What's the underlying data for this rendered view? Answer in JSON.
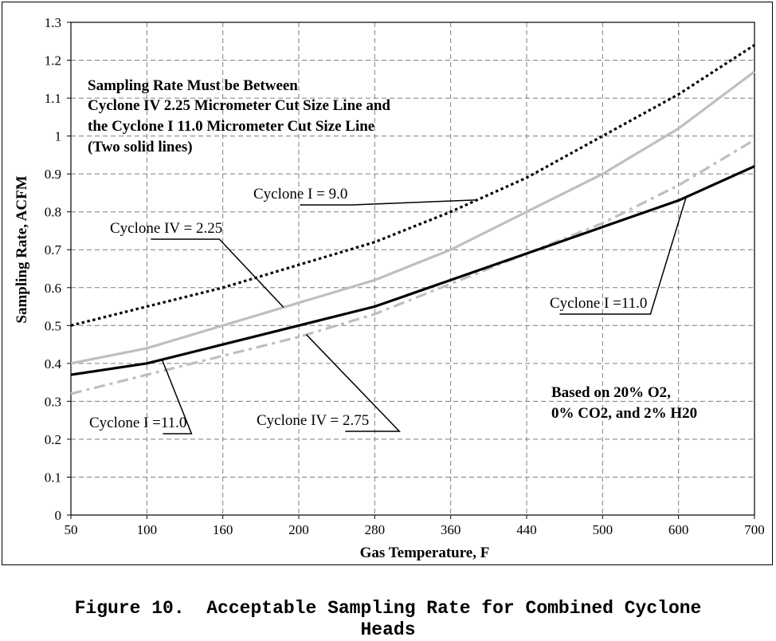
{
  "chart_data": {
    "type": "line",
    "categories": [
      "50",
      "100",
      "160",
      "200",
      "280",
      "360",
      "440",
      "500",
      "600",
      "700"
    ],
    "ylabel": "Sampling Rate, ACFM",
    "xlabel": "Gas Temperature, F",
    "ylim": [
      0,
      1.3
    ],
    "yticks": [
      "0",
      "0.1",
      "0.2",
      "0.3",
      "0.4",
      "0.5",
      "0.6",
      "0.7",
      "0.8",
      "0.9",
      "1",
      "1.1",
      "1.2",
      "1.3"
    ],
    "grid": "dashed",
    "series": [
      {
        "key": "cyc1_9",
        "label_ref": "Cyclone I = 9.0",
        "style": "dotted",
        "color": "#000000",
        "values": [
          0.5,
          0.55,
          0.6,
          0.66,
          0.72,
          0.8,
          0.89,
          1.0,
          1.11,
          1.24
        ]
      },
      {
        "key": "cyc4_225",
        "label_ref": "Cyclone IV = 2.25",
        "style": "solid",
        "color": "#bfbfbf",
        "values": [
          0.4,
          0.44,
          0.5,
          0.56,
          0.62,
          0.7,
          0.8,
          0.9,
          1.02,
          1.17
        ]
      },
      {
        "key": "cyc1_11",
        "label_ref": "Cyclone I =11.0",
        "style": "solid",
        "color": "#000000",
        "values": [
          0.37,
          0.4,
          0.45,
          0.5,
          0.55,
          0.62,
          0.69,
          0.76,
          0.83,
          0.92
        ]
      },
      {
        "key": "cyc4_275",
        "label_ref": "Cyclone IV = 2.75",
        "style": "dashdot",
        "color": "#bfbfbf",
        "values": [
          0.32,
          0.37,
          0.42,
          0.47,
          0.53,
          0.61,
          0.69,
          0.77,
          0.87,
          0.99
        ]
      }
    ],
    "annotations": {
      "note_lines": [
        "Sampling Rate Must be Between",
        "Cyclone IV 2.25 Micrometer Cut Size Line and",
        "the Cyclone I 11.0 Micrometer Cut Size Line",
        "(Two solid lines)"
      ],
      "basis_lines": [
        "Based on 20% O2,",
        "0% CO2, and 2% H20"
      ],
      "callouts": [
        {
          "text": "Cyclone I = 9.0",
          "series": "cyc1_9",
          "target_x_index": 5.35
        },
        {
          "text": "Cyclone IV = 2.25",
          "series": "cyc4_225",
          "target_x_index": 2.8
        },
        {
          "text": "Cyclone I =11.0",
          "series": "cyc1_11",
          "target_x_index": 8.1
        },
        {
          "text": "Cyclone I =11.0",
          "series": "cyc1_11",
          "target_x_index": 1.2
        },
        {
          "text": "Cyclone IV = 2.75",
          "series": "cyc4_275",
          "target_x_index": 3.1
        }
      ]
    }
  },
  "caption": {
    "line1": "Figure 10.  Acceptable Sampling Rate for Combined Cyclone",
    "line2": "Heads"
  }
}
